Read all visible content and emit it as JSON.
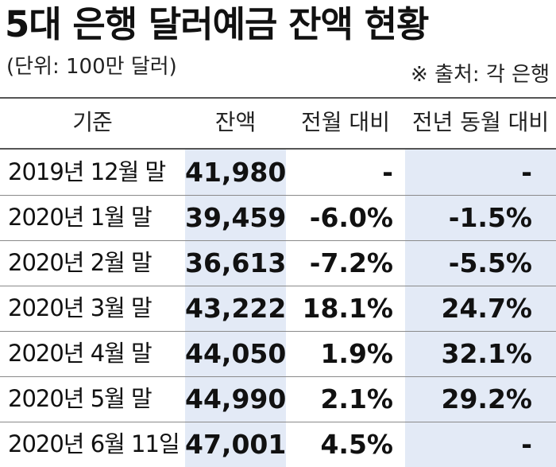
{
  "title": "5대 은행 달러예금 잔액 현황",
  "unit": "(단위: 100만 달러)",
  "source": "※ 출처: 각 은행",
  "chart_data": {
    "type": "table",
    "columns": [
      "기준",
      "잔액",
      "전월 대비",
      "전년 동월 대비"
    ],
    "rows": [
      {
        "date": "2019년 12월 말",
        "balance": "41,980",
        "mom": "-",
        "yoy": "-"
      },
      {
        "date": "2020년 1월 말",
        "balance": "39,459",
        "mom": "-6.0%",
        "yoy": "-1.5%"
      },
      {
        "date": "2020년 2월 말",
        "balance": "36,613",
        "mom": "-7.2%",
        "yoy": "-5.5%"
      },
      {
        "date": "2020년 3월 말",
        "balance": "43,222",
        "mom": "18.1%",
        "yoy": "24.7%"
      },
      {
        "date": "2020년 4월 말",
        "balance": "44,050",
        "mom": "1.9%",
        "yoy": "32.1%"
      },
      {
        "date": "2020년 5월 말",
        "balance": "44,990",
        "mom": "2.1%",
        "yoy": "29.2%"
      },
      {
        "date": "2020년 6월 11일",
        "balance": "47,001",
        "mom": "4.5%",
        "yoy": "-"
      }
    ]
  },
  "colors": {
    "highlight_band": "#e3eaf6",
    "rule": "#8a8a8a",
    "text": "#111111"
  }
}
